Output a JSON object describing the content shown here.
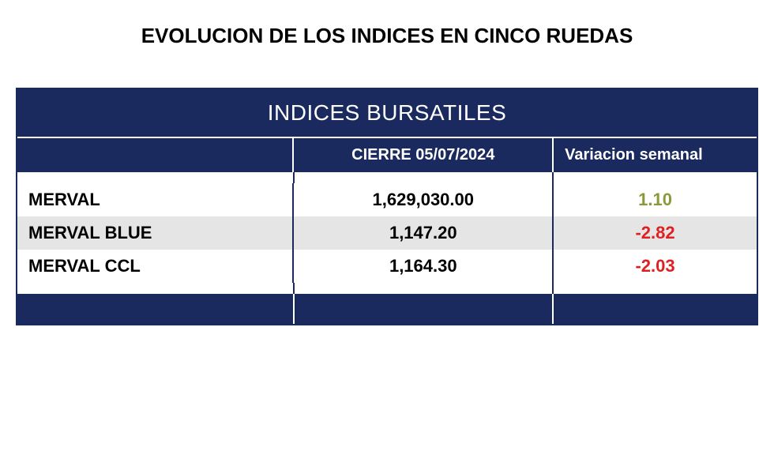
{
  "page_title": "EVOLUCION DE LOS INDICES EN CINCO RUEDAS",
  "table": {
    "header_band": "INDICES BURSATILES",
    "columns": {
      "name": "",
      "value": "CIERRE 05/07/2024",
      "variation": "Variacion semanal"
    },
    "col_widths": {
      "name": 350,
      "value": 330,
      "variation": 260
    },
    "colors": {
      "band_bg": "#1a2a5e",
      "band_fg": "#ffffff",
      "border": "#1a2a5e",
      "alt_row_bg": "#e5e5e5",
      "text": "#000000",
      "positive": "#8a9a3a",
      "negative": "#e02020"
    },
    "font_sizes": {
      "title": 26,
      "band": 28,
      "subhead": 20,
      "cell": 22
    },
    "rows": [
      {
        "name": "MERVAL",
        "value": "1,629,030.00",
        "variation": "1.10",
        "var_sign": "pos",
        "alt": false
      },
      {
        "name": "MERVAL BLUE",
        "value": "1,147.20",
        "variation": "-2.82",
        "var_sign": "neg",
        "alt": true
      },
      {
        "name": "MERVAL CCL",
        "value": "1,164.30",
        "variation": "-2.03",
        "var_sign": "neg",
        "alt": false
      }
    ]
  }
}
